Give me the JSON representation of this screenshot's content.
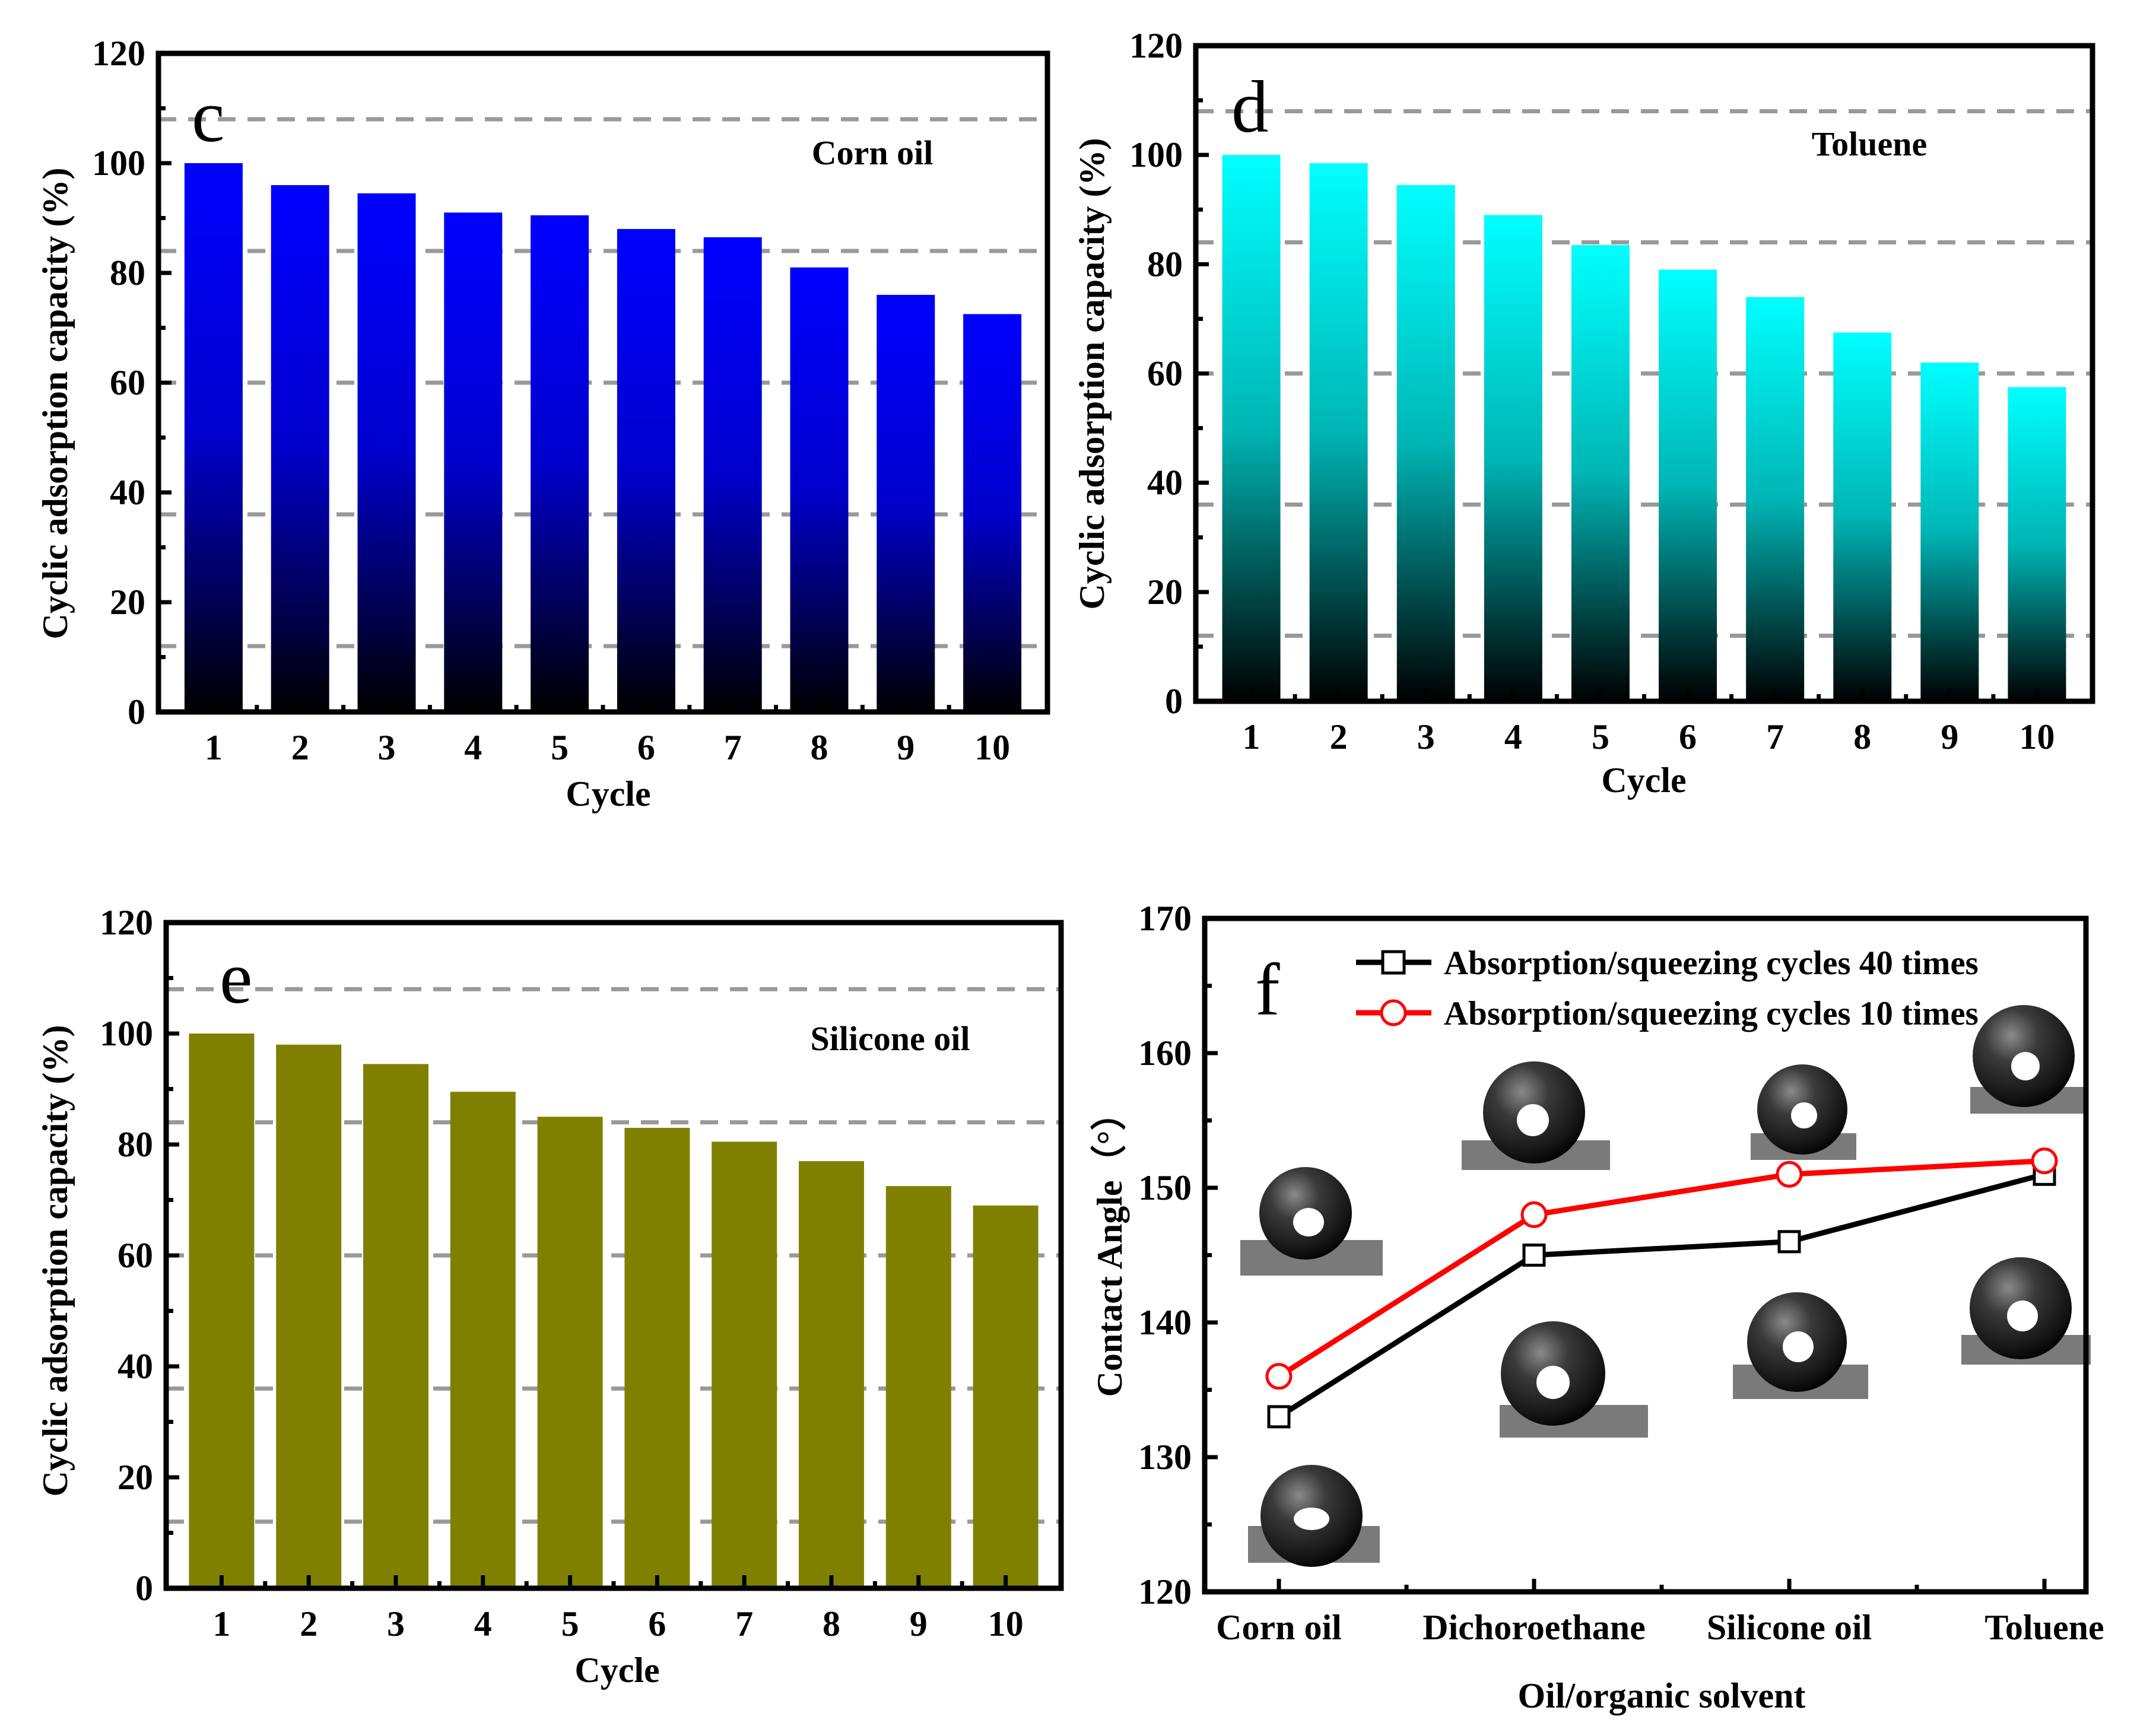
{
  "chart_data": [
    {
      "panel": "c",
      "type": "bar",
      "annotation": "Corn oil",
      "xlabel": "Cycle",
      "ylabel": "Cyclic adsorption capacity (%)",
      "ylim": [
        0,
        120
      ],
      "yticks": [
        0,
        20,
        40,
        60,
        80,
        100,
        120
      ],
      "categories": [
        "1",
        "2",
        "3",
        "4",
        "5",
        "6",
        "7",
        "8",
        "9",
        "10"
      ],
      "values": [
        100,
        96,
        94.5,
        91,
        90.5,
        88,
        86.5,
        81,
        76,
        72.5
      ],
      "reference_lines": [
        108,
        84,
        60,
        36,
        12
      ],
      "bar_gradient": {
        "top": "#0000ff",
        "bottom": "#000000"
      }
    },
    {
      "panel": "d",
      "type": "bar",
      "annotation": "Toluene",
      "xlabel": "Cycle",
      "ylabel": "Cyclic adsorption capacity (%)",
      "ylim": [
        0,
        120
      ],
      "yticks": [
        0,
        20,
        40,
        60,
        80,
        100,
        120
      ],
      "categories": [
        "1",
        "2",
        "3",
        "4",
        "5",
        "6",
        "7",
        "8",
        "9",
        "10"
      ],
      "values": [
        100,
        98.5,
        94.5,
        89,
        83.5,
        79,
        74,
        67.5,
        62,
        57.5
      ],
      "reference_lines": [
        108,
        84,
        60,
        36,
        12
      ],
      "bar_gradient": {
        "top": "#00ffff",
        "bottom": "#000000"
      }
    },
    {
      "panel": "e",
      "type": "bar",
      "annotation": "Silicone oil",
      "xlabel": "Cycle",
      "ylabel": "Cyclic adsorption capacity (%)",
      "ylim": [
        0,
        120
      ],
      "yticks": [
        0,
        20,
        40,
        60,
        80,
        100,
        120
      ],
      "categories": [
        "1",
        "2",
        "3",
        "4",
        "5",
        "6",
        "7",
        "8",
        "9",
        "10"
      ],
      "values": [
        100,
        98,
        94.5,
        89.5,
        85,
        83,
        80.5,
        77,
        72.5,
        69
      ],
      "reference_lines": [
        108,
        84,
        60,
        36,
        12
      ],
      "bar_color": "#808000"
    },
    {
      "panel": "f",
      "type": "line",
      "xlabel": "Oil/organic solvent",
      "ylabel": "Contact Angle（°）",
      "ylim": [
        120,
        170
      ],
      "yticks": [
        120,
        130,
        140,
        150,
        160,
        170
      ],
      "categories": [
        "Corn oil",
        "Dichoroethane",
        "Silicone oil",
        "Toluene"
      ],
      "series": [
        {
          "name": "Absorption/squeezing cycles 40 times",
          "values": [
            133,
            145,
            146,
            151
          ],
          "color": "#000000",
          "marker": "square"
        },
        {
          "name": "Absorption/squeezing cycles 10 times",
          "values": [
            136,
            148,
            151,
            152
          ],
          "color": "#ff0000",
          "marker": "circle"
        }
      ],
      "insets": "droplet contact-angle photographs above and below each solvent"
    }
  ]
}
